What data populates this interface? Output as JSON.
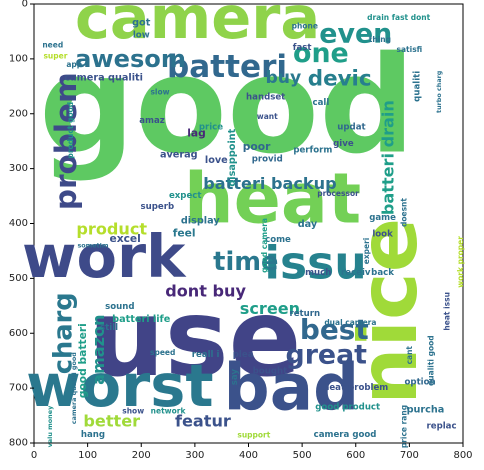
{
  "chart_data": {
    "type": "wordcloud",
    "x_ticks": [
      "0",
      "100",
      "200",
      "300",
      "400",
      "500",
      "600",
      "700",
      "800"
    ],
    "y_ticks": [
      "0",
      "100",
      "200",
      "300",
      "400",
      "500",
      "600",
      "700",
      "800"
    ],
    "xlim": [
      0,
      800
    ],
    "ylim": [
      800,
      0
    ],
    "grid": false,
    "words": [
      {
        "text": "camera",
        "x": 305,
        "y": 25,
        "size": 110,
        "rot": 0,
        "color": "#8fd34a"
      },
      {
        "text": "good",
        "x": 360,
        "y": 185,
        "size": 250,
        "rot": 0,
        "color": "#5ec962"
      },
      {
        "text": "heat",
        "x": 445,
        "y": 355,
        "size": 130,
        "rot": 0,
        "color": "#73d056"
      },
      {
        "text": "nice",
        "x": 660,
        "y": 560,
        "size": 150,
        "rot": -90,
        "color": "#a0da39"
      },
      {
        "text": "use",
        "x": 300,
        "y": 610,
        "size": 200,
        "rot": 0,
        "color": "#414487"
      },
      {
        "text": "worst",
        "x": 160,
        "y": 695,
        "size": 110,
        "rot": 0,
        "color": "#2a788e"
      },
      {
        "text": "bad",
        "x": 480,
        "y": 700,
        "size": 120,
        "rot": 0,
        "color": "#3b528b"
      },
      {
        "text": "work",
        "x": 130,
        "y": 460,
        "size": 110,
        "rot": 0,
        "color": "#3e4a89"
      },
      {
        "text": "issu",
        "x": 525,
        "y": 472,
        "size": 85,
        "rot": 0,
        "color": "#26828e"
      },
      {
        "text": "batteri",
        "x": 360,
        "y": 115,
        "size": 58,
        "rot": 0,
        "color": "#31688e"
      },
      {
        "text": "awesom",
        "x": 180,
        "y": 100,
        "size": 45,
        "rot": 0,
        "color": "#2c728e"
      },
      {
        "text": "even",
        "x": 600,
        "y": 55,
        "size": 50,
        "rot": 0,
        "color": "#21918c"
      },
      {
        "text": "one",
        "x": 535,
        "y": 90,
        "size": 50,
        "rot": 0,
        "color": "#1f9e89"
      },
      {
        "text": "devic",
        "x": 570,
        "y": 137,
        "size": 40,
        "rot": 0,
        "color": "#277f8e"
      },
      {
        "text": "buy",
        "x": 465,
        "y": 135,
        "size": 32,
        "rot": 0,
        "color": "#2a788e"
      },
      {
        "text": "problem",
        "x": 60,
        "y": 250,
        "size": 55,
        "rot": -90,
        "color": "#3e4a89"
      },
      {
        "text": "batteri backup",
        "x": 440,
        "y": 327,
        "size": 30,
        "rot": 0,
        "color": "#2c728e"
      },
      {
        "text": "batteri drain",
        "x": 660,
        "y": 280,
        "size": 30,
        "rot": -90,
        "color": "#1f9e89"
      },
      {
        "text": "product",
        "x": 145,
        "y": 410,
        "size": 30,
        "rot": 0,
        "color": "#b5de2b"
      },
      {
        "text": "time",
        "x": 395,
        "y": 470,
        "size": 48,
        "rot": 0,
        "color": "#2a788e"
      },
      {
        "text": "dont buy",
        "x": 320,
        "y": 523,
        "size": 30,
        "rot": 0,
        "color": "#482878"
      },
      {
        "text": "screen",
        "x": 440,
        "y": 555,
        "size": 30,
        "rot": 0,
        "color": "#1f9e89"
      },
      {
        "text": "best",
        "x": 560,
        "y": 593,
        "size": 52,
        "rot": 0,
        "color": "#31688e"
      },
      {
        "text": "great",
        "x": 545,
        "y": 640,
        "size": 50,
        "rot": 0,
        "color": "#3b528b"
      },
      {
        "text": "charg",
        "x": 55,
        "y": 600,
        "size": 48,
        "rot": -90,
        "color": "#2a788e"
      },
      {
        "text": "amazon",
        "x": 120,
        "y": 630,
        "size": 30,
        "rot": -90,
        "color": "#21918c"
      },
      {
        "text": "better",
        "x": 145,
        "y": 760,
        "size": 30,
        "rot": 0,
        "color": "#a0da39"
      },
      {
        "text": "featur",
        "x": 315,
        "y": 760,
        "size": 30,
        "rot": 0,
        "color": "#3b528b"
      },
      {
        "text": "good batteri",
        "x": 90,
        "y": 650,
        "size": 20,
        "rot": -90,
        "color": "#1f9e89"
      },
      {
        "text": "batteri life",
        "x": 200,
        "y": 575,
        "size": 18,
        "rot": 0,
        "color": "#1f9e89"
      },
      {
        "text": "sound",
        "x": 160,
        "y": 552,
        "size": 16,
        "rot": 0,
        "color": "#2c728e"
      },
      {
        "text": "still",
        "x": 140,
        "y": 590,
        "size": 16,
        "rot": 0,
        "color": "#2c728e"
      },
      {
        "text": "excel",
        "x": 170,
        "y": 427,
        "size": 20,
        "rot": 0,
        "color": "#3b528b"
      },
      {
        "text": "display",
        "x": 310,
        "y": 395,
        "size": 18,
        "rot": 0,
        "color": "#2c728e"
      },
      {
        "text": "feel",
        "x": 280,
        "y": 417,
        "size": 20,
        "rot": 0,
        "color": "#2a788e"
      },
      {
        "text": "expect",
        "x": 282,
        "y": 350,
        "size": 16,
        "rot": 0,
        "color": "#21918c"
      },
      {
        "text": "superb",
        "x": 230,
        "y": 370,
        "size": 16,
        "rot": 0,
        "color": "#3b528b"
      },
      {
        "text": "lag",
        "x": 303,
        "y": 235,
        "size": 20,
        "rot": 0,
        "color": "#482878"
      },
      {
        "text": "averag",
        "x": 270,
        "y": 275,
        "size": 18,
        "rot": 0,
        "color": "#3b528b"
      },
      {
        "text": "price",
        "x": 330,
        "y": 225,
        "size": 16,
        "rot": 0,
        "color": "#21918c"
      },
      {
        "text": "love",
        "x": 340,
        "y": 285,
        "size": 18,
        "rot": 0,
        "color": "#3b528b"
      },
      {
        "text": "poor",
        "x": 415,
        "y": 260,
        "size": 20,
        "rot": 0,
        "color": "#31688e"
      },
      {
        "text": "provid",
        "x": 435,
        "y": 283,
        "size": 16,
        "rot": 0,
        "color": "#31688e"
      },
      {
        "text": "perform",
        "x": 520,
        "y": 267,
        "size": 16,
        "rot": 0,
        "color": "#2c728e"
      },
      {
        "text": "give",
        "x": 577,
        "y": 255,
        "size": 16,
        "rot": 0,
        "color": "#3b528b"
      },
      {
        "text": "updat",
        "x": 592,
        "y": 225,
        "size": 16,
        "rot": 0,
        "color": "#31688e"
      },
      {
        "text": "call",
        "x": 535,
        "y": 180,
        "size": 16,
        "rot": 0,
        "color": "#2c728e"
      },
      {
        "text": "handset",
        "x": 432,
        "y": 170,
        "size": 16,
        "rot": 0,
        "color": "#3b528b"
      },
      {
        "text": "want",
        "x": 435,
        "y": 205,
        "size": 14,
        "rot": 0,
        "color": "#3b528b"
      },
      {
        "text": "disappoint",
        "x": 370,
        "y": 280,
        "size": 18,
        "rot": -90,
        "color": "#21918c"
      },
      {
        "text": "camera qualiti",
        "x": 130,
        "y": 135,
        "size": 18,
        "rot": 0,
        "color": "#3b528b"
      },
      {
        "text": "product good",
        "x": 68,
        "y": 230,
        "size": 14,
        "rot": -90,
        "color": "#21918c"
      },
      {
        "text": "amaz",
        "x": 220,
        "y": 213,
        "size": 16,
        "rot": 0,
        "color": "#3b528b"
      },
      {
        "text": "slow",
        "x": 235,
        "y": 160,
        "size": 14,
        "rot": 0,
        "color": "#2c728e"
      },
      {
        "text": "got",
        "x": 200,
        "y": 35,
        "size": 18,
        "rot": 0,
        "color": "#2c728e"
      },
      {
        "text": "low",
        "x": 200,
        "y": 57,
        "size": 16,
        "rot": 0,
        "color": "#2c728e"
      },
      {
        "text": "need",
        "x": 35,
        "y": 75,
        "size": 14,
        "rot": 0,
        "color": "#2c728e"
      },
      {
        "text": "super",
        "x": 40,
        "y": 95,
        "size": 14,
        "rot": 0,
        "color": "#b5de2b"
      },
      {
        "text": "app",
        "x": 75,
        "y": 110,
        "size": 14,
        "rot": 0,
        "color": "#2c728e"
      },
      {
        "text": "drain fast dont",
        "x": 680,
        "y": 25,
        "size": 14,
        "rot": 0,
        "color": "#21918c"
      },
      {
        "text": "phone",
        "x": 505,
        "y": 40,
        "size": 14,
        "rot": 0,
        "color": "#2c728e"
      },
      {
        "text": "fast",
        "x": 500,
        "y": 80,
        "size": 16,
        "rot": 0,
        "color": "#3b528b"
      },
      {
        "text": "thing",
        "x": 645,
        "y": 65,
        "size": 14,
        "rot": 0,
        "color": "#2c728e"
      },
      {
        "text": "satisfi",
        "x": 700,
        "y": 83,
        "size": 14,
        "rot": 0,
        "color": "#2c728e"
      },
      {
        "text": "turbo charg",
        "x": 755,
        "y": 160,
        "size": 12,
        "rot": -90,
        "color": "#2c728e"
      },
      {
        "text": "qualiti",
        "x": 715,
        "y": 150,
        "size": 16,
        "rot": -90,
        "color": "#2c728e"
      },
      {
        "text": "processor",
        "x": 567,
        "y": 345,
        "size": 14,
        "rot": 0,
        "color": "#3b528b"
      },
      {
        "text": "game",
        "x": 650,
        "y": 390,
        "size": 16,
        "rot": 0,
        "color": "#2c728e"
      },
      {
        "text": "look",
        "x": 650,
        "y": 420,
        "size": 16,
        "rot": 0,
        "color": "#3b528b"
      },
      {
        "text": "doesnt",
        "x": 690,
        "y": 380,
        "size": 14,
        "rot": -90,
        "color": "#2c728e"
      },
      {
        "text": "experi",
        "x": 620,
        "y": 450,
        "size": 14,
        "rot": -90,
        "color": "#2c728e"
      },
      {
        "text": "back",
        "x": 650,
        "y": 490,
        "size": 16,
        "rot": 0,
        "color": "#2c728e"
      },
      {
        "text": "receiv",
        "x": 600,
        "y": 490,
        "size": 16,
        "rot": 0,
        "color": "#2c728e"
      },
      {
        "text": "much",
        "x": 530,
        "y": 490,
        "size": 16,
        "rot": 0,
        "color": "#3b528b"
      },
      {
        "text": "come",
        "x": 455,
        "y": 430,
        "size": 16,
        "rot": 0,
        "color": "#2c728e"
      },
      {
        "text": "day",
        "x": 510,
        "y": 402,
        "size": 18,
        "rot": 0,
        "color": "#2c728e"
      },
      {
        "text": "good camera",
        "x": 430,
        "y": 440,
        "size": 14,
        "rot": -90,
        "color": "#1f9e89"
      },
      {
        "text": "return",
        "x": 505,
        "y": 565,
        "size": 16,
        "rot": 0,
        "color": "#31688e"
      },
      {
        "text": "dual camera",
        "x": 590,
        "y": 580,
        "size": 14,
        "rot": 0,
        "color": "#2c728e"
      },
      {
        "text": "plea",
        "x": 390,
        "y": 640,
        "size": 16,
        "rot": 0,
        "color": "#3b528b"
      },
      {
        "text": "bought",
        "x": 440,
        "y": 670,
        "size": 16,
        "rot": 0,
        "color": "#3b528b"
      },
      {
        "text": "reall i",
        "x": 320,
        "y": 640,
        "size": 16,
        "rot": 0,
        "color": "#2c728e"
      },
      {
        "text": "speed",
        "x": 240,
        "y": 635,
        "size": 14,
        "rot": 0,
        "color": "#2c728e"
      },
      {
        "text": "say",
        "x": 375,
        "y": 680,
        "size": 16,
        "rot": -90,
        "color": "#2c728e"
      },
      {
        "text": "heat problem",
        "x": 600,
        "y": 700,
        "size": 16,
        "rot": 0,
        "color": "#3b528b"
      },
      {
        "text": "good product",
        "x": 585,
        "y": 735,
        "size": 16,
        "rot": 0,
        "color": "#21918c"
      },
      {
        "text": "camera good",
        "x": 580,
        "y": 785,
        "size": 16,
        "rot": 0,
        "color": "#2c728e"
      },
      {
        "text": "network",
        "x": 250,
        "y": 742,
        "size": 14,
        "rot": 0,
        "color": "#21918c"
      },
      {
        "text": "show",
        "x": 185,
        "y": 742,
        "size": 14,
        "rot": 0,
        "color": "#3b528b"
      },
      {
        "text": "hang",
        "x": 110,
        "y": 785,
        "size": 16,
        "rot": 0,
        "color": "#2c728e"
      },
      {
        "text": "support",
        "x": 410,
        "y": 785,
        "size": 14,
        "rot": 0,
        "color": "#a0da39"
      },
      {
        "text": "option",
        "x": 720,
        "y": 690,
        "size": 16,
        "rot": 0,
        "color": "#31688e"
      },
      {
        "text": "purcha",
        "x": 730,
        "y": 740,
        "size": 18,
        "rot": 0,
        "color": "#2c728e"
      },
      {
        "text": "replac",
        "x": 760,
        "y": 770,
        "size": 16,
        "rot": 0,
        "color": "#3b528b"
      },
      {
        "text": "cant",
        "x": 700,
        "y": 640,
        "size": 14,
        "rot": -90,
        "color": "#2c728e"
      },
      {
        "text": "work proper",
        "x": 795,
        "y": 470,
        "size": 14,
        "rot": -90,
        "color": "#b5de2b"
      },
      {
        "text": "qualiti good",
        "x": 740,
        "y": 650,
        "size": 14,
        "rot": -90,
        "color": "#2c728e"
      },
      {
        "text": "heat issu",
        "x": 770,
        "y": 560,
        "size": 14,
        "rot": -90,
        "color": "#3b528b"
      },
      {
        "text": "price rang",
        "x": 690,
        "y": 770,
        "size": 14,
        "rot": -90,
        "color": "#2c728e"
      },
      {
        "text": "valu money",
        "x": 30,
        "y": 770,
        "size": 12,
        "rot": -90,
        "color": "#21918c"
      },
      {
        "text": "sometim",
        "x": 110,
        "y": 440,
        "size": 12,
        "rot": 0,
        "color": "#2c728e"
      },
      {
        "text": "camera qualiti good",
        "x": 75,
        "y": 700,
        "size": 12,
        "rot": -90,
        "color": "#2c728e"
      }
    ]
  }
}
